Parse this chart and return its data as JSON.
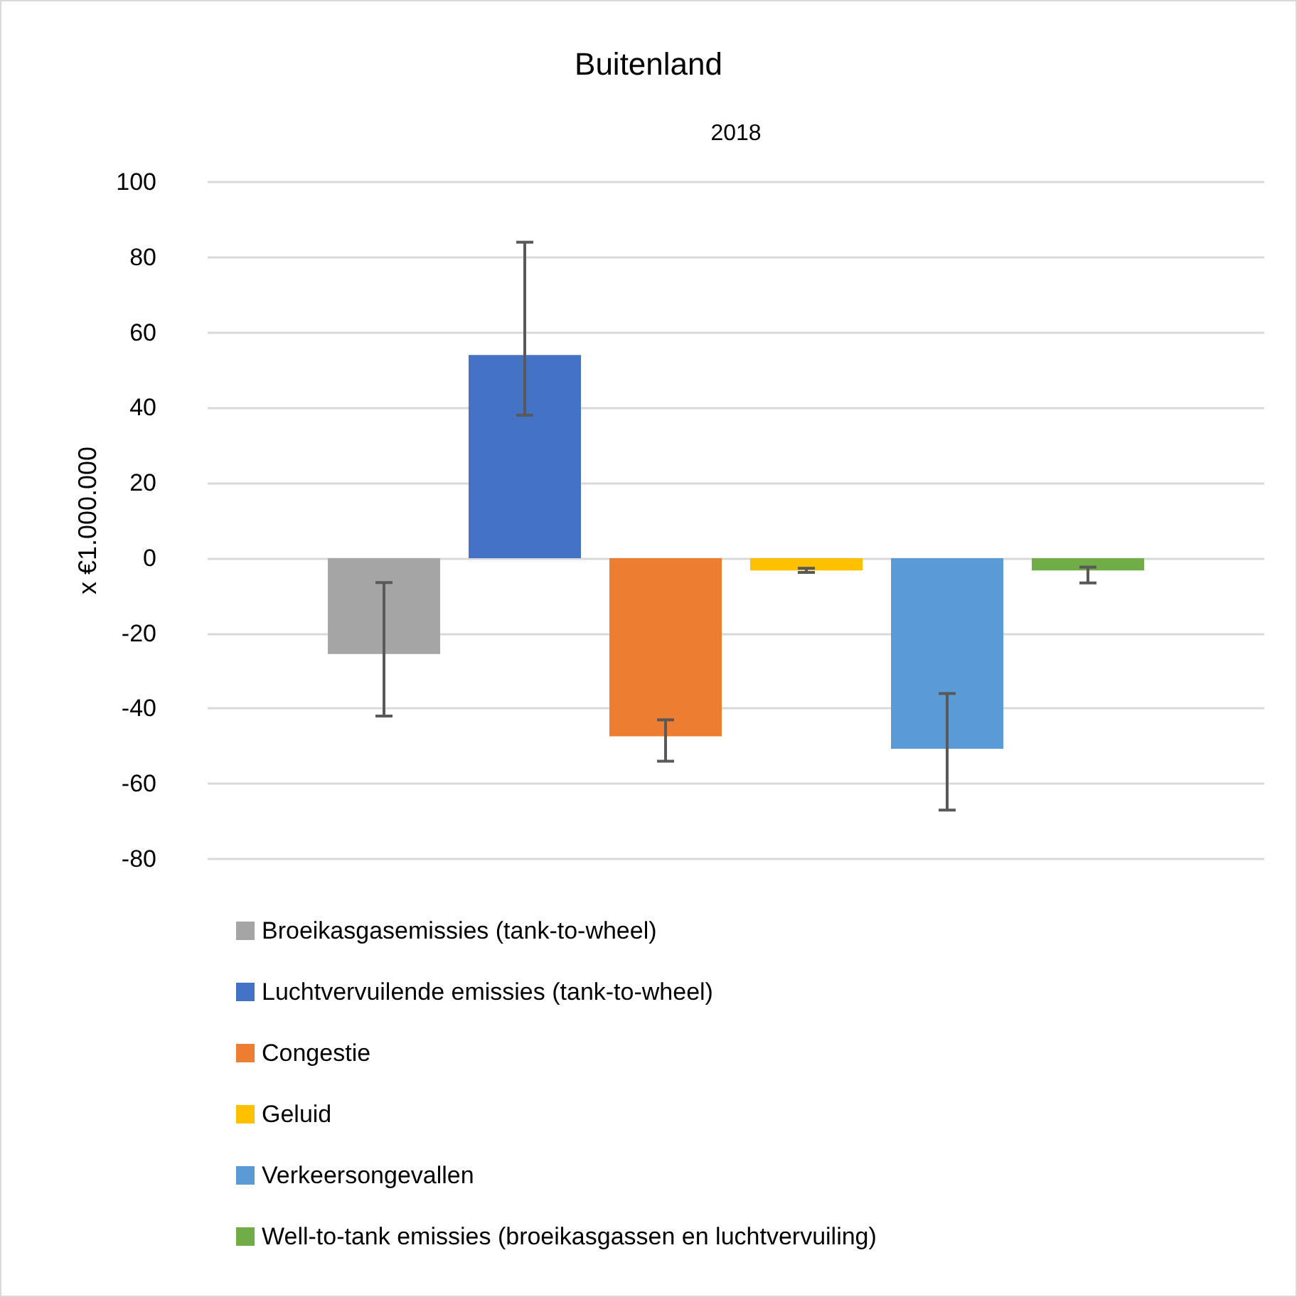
{
  "chart_data": {
    "type": "bar",
    "title": "Buitenland",
    "ylabel": "x €1.000.000",
    "categories": [
      "2018"
    ],
    "series": [
      {
        "name": "Broeikasgasemissies (tank-to-wheel)",
        "color": "#a5a5a5",
        "values": [
          -25.5
        ],
        "errors": [
          [
            -42,
            -6.5
          ]
        ]
      },
      {
        "name": "Luchtvervuilende emissies (tank-to-wheel)",
        "color": "#4472c4",
        "values": [
          54
        ],
        "errors": [
          [
            38,
            84
          ]
        ]
      },
      {
        "name": "Congestie",
        "color": "#ed7d31",
        "values": [
          -47.4
        ],
        "errors": [
          [
            -54,
            -43
          ]
        ]
      },
      {
        "name": "Geluid",
        "color": "#ffc000",
        "values": [
          -3.3
        ],
        "errors": [
          [
            -3.8,
            -2.7
          ]
        ]
      },
      {
        "name": "Verkeersongevallen",
        "color": "#5b9bd5",
        "values": [
          -50.7
        ],
        "errors": [
          [
            -67,
            -36
          ]
        ]
      },
      {
        "name": "Well-to-tank emissies (broeikasgassen en luchtvervuiling)",
        "color": "#70ad47",
        "values": [
          -3.3
        ],
        "errors": [
          [
            -6.6,
            -2.4
          ]
        ]
      }
    ],
    "ylim": [
      -80,
      100
    ],
    "yticks": [
      -80,
      -60,
      -40,
      -20,
      0,
      20,
      40,
      60,
      80,
      100
    ],
    "grid": "y",
    "legend": "bottom"
  }
}
